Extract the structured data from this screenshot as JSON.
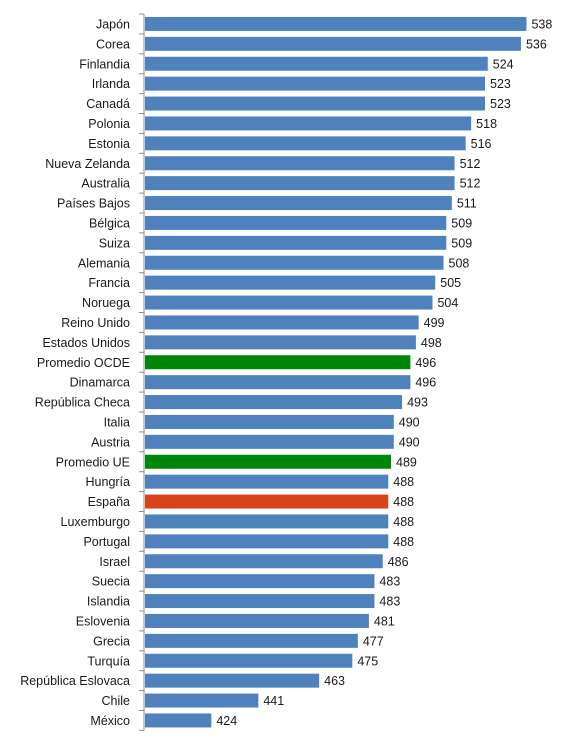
{
  "chart_data": {
    "type": "bar",
    "orientation": "horizontal",
    "title": "",
    "xlabel": "",
    "ylabel": "",
    "xlim": [
      400,
      540
    ],
    "grid": false,
    "legend": "none",
    "colors": {
      "default": "#4f81bd",
      "average": "#00870a",
      "highlight": "#d9431a"
    },
    "categories": [
      "Japón",
      "Corea",
      "Finlandia",
      "Irlanda",
      "Canadá",
      "Polonia",
      "Estonia",
      "Nueva Zelanda",
      "Australia",
      "Países Bajos",
      "Bélgica",
      "Suiza",
      "Alemania",
      "Francia",
      "Noruega",
      "Reino Unido",
      "Estados Unidos",
      "Promedio OCDE",
      "Dinamarca",
      "República Checa",
      "Italia",
      "Austria",
      "Promedio UE",
      "Hungría",
      "España",
      "Luxemburgo",
      "Portugal",
      "Israel",
      "Suecia",
      "Islandia",
      "Eslovenia",
      "Grecia",
      "Turquía",
      "República Eslovaca",
      "Chile",
      "México"
    ],
    "values": [
      538,
      536,
      524,
      523,
      523,
      518,
      516,
      512,
      512,
      511,
      509,
      509,
      508,
      505,
      504,
      499,
      498,
      496,
      496,
      493,
      490,
      490,
      489,
      488,
      488,
      488,
      488,
      486,
      483,
      483,
      481,
      477,
      475,
      463,
      441,
      424
    ],
    "bar_roles": [
      "default",
      "default",
      "default",
      "default",
      "default",
      "default",
      "default",
      "default",
      "default",
      "default",
      "default",
      "default",
      "default",
      "default",
      "default",
      "default",
      "default",
      "average",
      "default",
      "default",
      "default",
      "default",
      "average",
      "default",
      "highlight",
      "default",
      "default",
      "default",
      "default",
      "default",
      "default",
      "default",
      "default",
      "default",
      "default",
      "default"
    ]
  }
}
